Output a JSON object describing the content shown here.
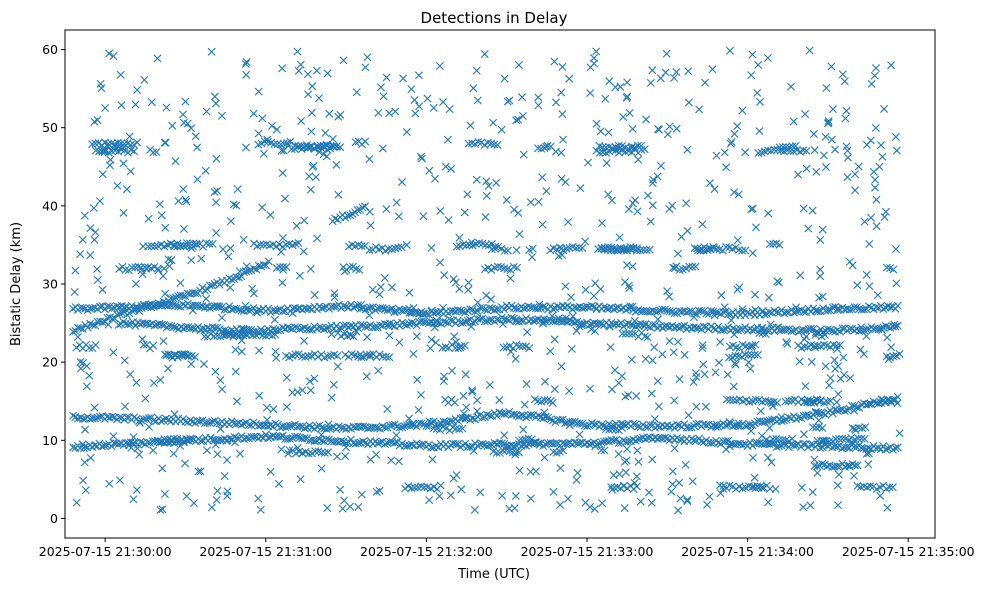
{
  "chart_data": {
    "type": "scatter",
    "title": "Detections in Delay",
    "xlabel": "Time (UTC)",
    "ylabel": "Bistatic Delay (km)",
    "marker": "x",
    "color": "#1f77b4",
    "grid": false,
    "legend": "none",
    "xlim": [
      "2025-07-15 21:29:45",
      "2025-07-15 21:35:10"
    ],
    "ylim": [
      -2.5,
      62.5
    ],
    "xticks": [
      "2025-07-15 21:30:00",
      "2025-07-15 21:31:00",
      "2025-07-15 21:32:00",
      "2025-07-15 21:33:00",
      "2025-07-15 21:34:00",
      "2025-07-15 21:35:00"
    ],
    "yticks": [
      0,
      10,
      20,
      30,
      40,
      50,
      60
    ],
    "time_range": [
      "2025-07-15 21:29:48",
      "2025-07-15 21:34:57"
    ],
    "tracks": [
      {
        "points": [
          [
            "2025-07-15 21:29:48",
            24.0
          ],
          [
            "2025-07-15 21:30:10",
            26.5
          ],
          [
            "2025-07-15 21:30:30",
            28.5
          ],
          [
            "2025-07-15 21:30:50",
            31.0
          ],
          [
            "2025-07-15 21:31:02",
            32.8
          ]
        ]
      },
      {
        "points": [
          [
            "2025-07-15 21:29:48",
            26.8
          ],
          [
            "2025-07-15 21:30:30",
            27.3
          ],
          [
            "2025-07-15 21:31:00",
            26.6
          ],
          [
            "2025-07-15 21:31:30",
            27.2
          ],
          [
            "2025-07-15 21:32:00",
            26.2
          ],
          [
            "2025-07-15 21:32:30",
            27.0
          ],
          [
            "2025-07-15 21:33:00",
            27.0
          ],
          [
            "2025-07-15 21:33:30",
            26.5
          ],
          [
            "2025-07-15 21:34:00",
            26.2
          ],
          [
            "2025-07-15 21:34:30",
            26.8
          ],
          [
            "2025-07-15 21:34:57",
            27.0
          ]
        ]
      },
      {
        "points": [
          [
            "2025-07-15 21:29:48",
            13.0
          ],
          [
            "2025-07-15 21:30:30",
            12.5
          ],
          [
            "2025-07-15 21:31:00",
            12.0
          ],
          [
            "2025-07-15 21:31:30",
            11.5
          ],
          [
            "2025-07-15 21:32:00",
            12.0
          ],
          [
            "2025-07-15 21:32:30",
            13.5
          ],
          [
            "2025-07-15 21:33:00",
            12.0
          ],
          [
            "2025-07-15 21:33:30",
            11.8
          ],
          [
            "2025-07-15 21:34:00",
            12.0
          ],
          [
            "2025-07-15 21:34:30",
            13.5
          ],
          [
            "2025-07-15 21:34:57",
            15.5
          ]
        ]
      },
      {
        "points": [
          [
            "2025-07-15 21:30:05",
            25.0
          ],
          [
            "2025-07-15 21:30:50",
            24.0
          ],
          [
            "2025-07-15 21:31:30",
            24.5
          ],
          [
            "2025-07-15 21:32:30",
            25.5
          ],
          [
            "2025-07-15 21:33:30",
            24.5
          ],
          [
            "2025-07-15 21:34:30",
            24.0
          ],
          [
            "2025-07-15 21:34:57",
            24.5
          ]
        ]
      },
      {
        "points": [
          [
            "2025-07-15 21:29:48",
            9.2
          ],
          [
            "2025-07-15 21:31:00",
            10.5
          ],
          [
            "2025-07-15 21:32:00",
            9.3
          ],
          [
            "2025-07-15 21:33:00",
            9.6
          ],
          [
            "2025-07-15 21:33:30",
            10.3
          ],
          [
            "2025-07-15 21:34:00",
            9.5
          ],
          [
            "2025-07-15 21:34:57",
            9.0
          ]
        ]
      },
      {
        "points": [
          [
            "2025-07-15 21:31:25",
            38.0
          ],
          [
            "2025-07-15 21:31:38",
            40.0
          ]
        ]
      },
      {
        "points": [
          [
            "2025-07-15 21:34:25",
            6.8
          ],
          [
            "2025-07-15 21:34:42",
            6.8
          ]
        ]
      }
    ],
    "levels": [
      47.5,
      48.0,
      47.0,
      35.0,
      34.5,
      32.0,
      23.5,
      22.0,
      20.8,
      15.0,
      11.5,
      10.0,
      8.5,
      4.0
    ]
  }
}
